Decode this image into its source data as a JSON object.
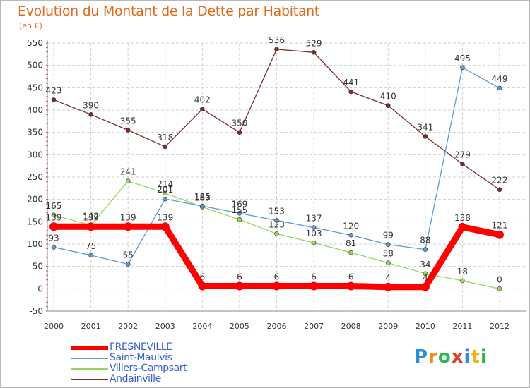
{
  "header": {
    "title": "Evolution du Montant de la Dette par Habitant",
    "subtitle": "(en €)"
  },
  "chart_data": {
    "type": "line",
    "title": "Evolution du Montant de la Dette par Habitant",
    "subtitle": "(en €)",
    "xlabel": "",
    "ylabel": "",
    "x": [
      "2000",
      "2001",
      "2002",
      "2003",
      "2004",
      "2005",
      "2006",
      "2007",
      "2008",
      "2009",
      "2010",
      "2011",
      "2012"
    ],
    "ylim": [
      -50,
      550
    ],
    "yticks": [
      -50,
      0,
      50,
      100,
      150,
      200,
      250,
      300,
      350,
      400,
      450,
      500,
      550
    ],
    "grid": true,
    "legend_position": "bottom-left",
    "series": [
      {
        "name": "FRESNEVILLE",
        "color": "#ff0000",
        "values": [
          139,
          139,
          139,
          139,
          6,
          6,
          6,
          6,
          6,
          4,
          4,
          138,
          121
        ]
      },
      {
        "name": "Saint-Maulvis",
        "color": "#5b9bd5",
        "values": [
          93,
          75,
          55,
          201,
          185,
          169,
          153,
          137,
          120,
          99,
          88,
          495,
          449
        ]
      },
      {
        "name": "Villers-Campsart",
        "color": "#99d65b",
        "values": [
          165,
          142,
          241,
          214,
          183,
          155,
          123,
          103,
          81,
          58,
          34,
          18,
          0
        ]
      },
      {
        "name": "Andainville",
        "color": "#7b2c2c",
        "values": [
          423,
          390,
          355,
          318,
          402,
          350,
          536,
          529,
          441,
          410,
          341,
          279,
          222
        ]
      }
    ]
  },
  "logo": {
    "letters": [
      "P",
      "r",
      "o",
      "x",
      "i",
      "t",
      "i"
    ],
    "colors": [
      "#2c8fd6",
      "#f08c1a",
      "#2cb84a",
      "#e03a2a",
      "#2c8fd6",
      "#f0b41a",
      "#2cb84a"
    ]
  }
}
